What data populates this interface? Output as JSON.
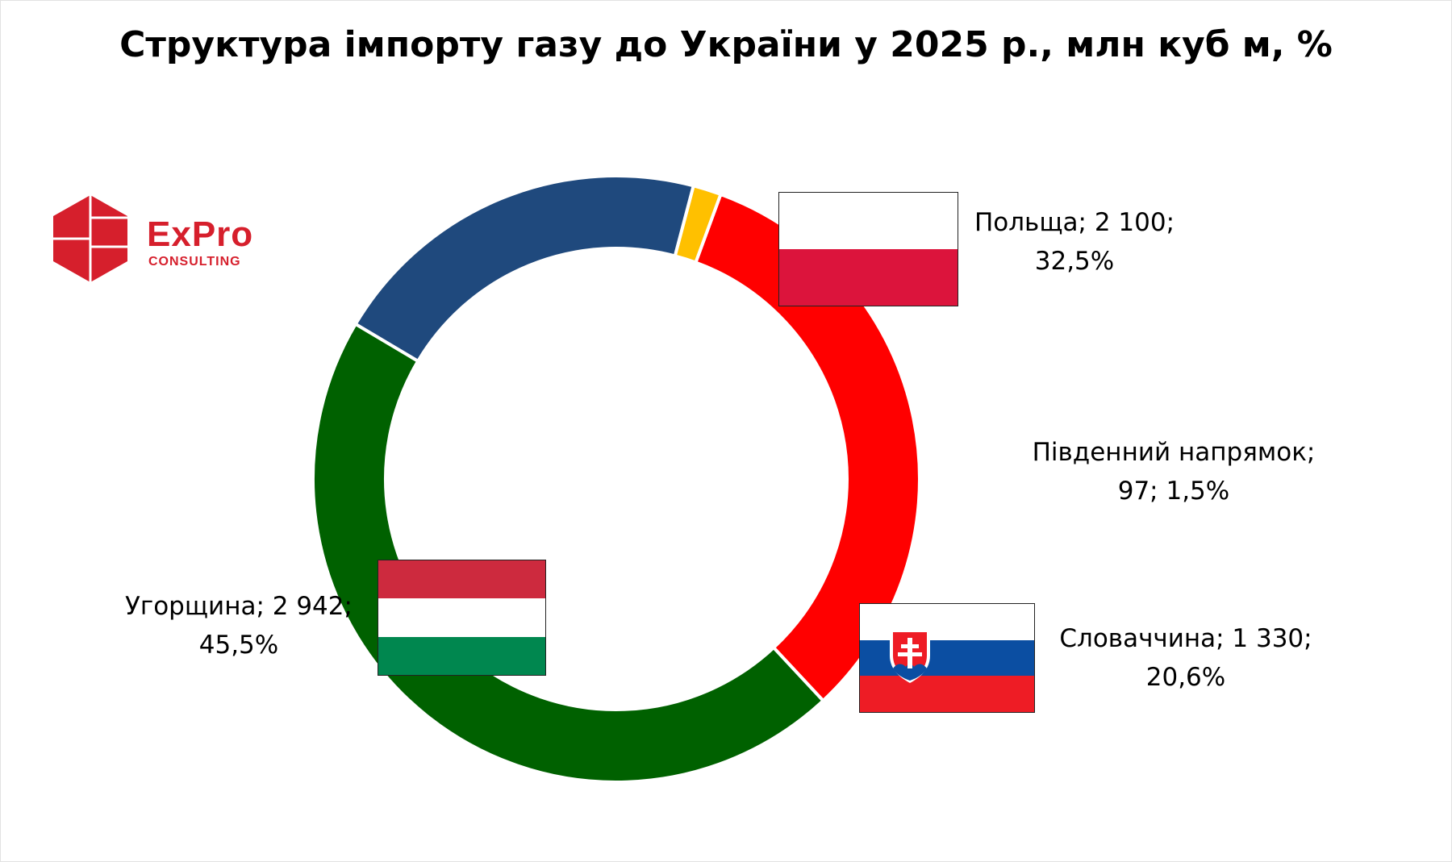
{
  "chart_data": {
    "type": "pie",
    "title": "Структура імпорту газу до України у 2025 р., млн куб м, %",
    "slices": [
      {
        "label": "Польща",
        "value": 2100,
        "percent": 32.5,
        "color": "#ff0000",
        "label_line1": "Польща; 2 100;",
        "label_line2": "32,5%"
      },
      {
        "label": "Південний напрямок",
        "value": 97,
        "percent": 1.5,
        "color": "#ffc000",
        "label_line1": "Південний напрямок;",
        "label_line2": "97; 1,5%"
      },
      {
        "label": "Словаччина",
        "value": 1330,
        "percent": 20.6,
        "color": "#1f497d",
        "label_line1": "Словаччина; 1 330;",
        "label_line2": "20,6%"
      },
      {
        "label": "Угорщина",
        "value": 2942,
        "percent": 45.5,
        "color": "#006100",
        "label_line1": "Угорщина; 2 942;",
        "label_line2": "45,5%"
      }
    ]
  },
  "logo": {
    "name": "ExPro",
    "sub": "CONSULTING",
    "color": "#d61f2c"
  },
  "flags": {
    "poland": {
      "colors": [
        "#ffffff",
        "#dc143c"
      ]
    },
    "hungary": {
      "colors": [
        "#cd2a3e",
        "#ffffff",
        "#00874f"
      ]
    },
    "slovakia": {
      "colors": [
        "#ffffff",
        "#0b4ea2",
        "#ee1c25"
      ]
    }
  }
}
